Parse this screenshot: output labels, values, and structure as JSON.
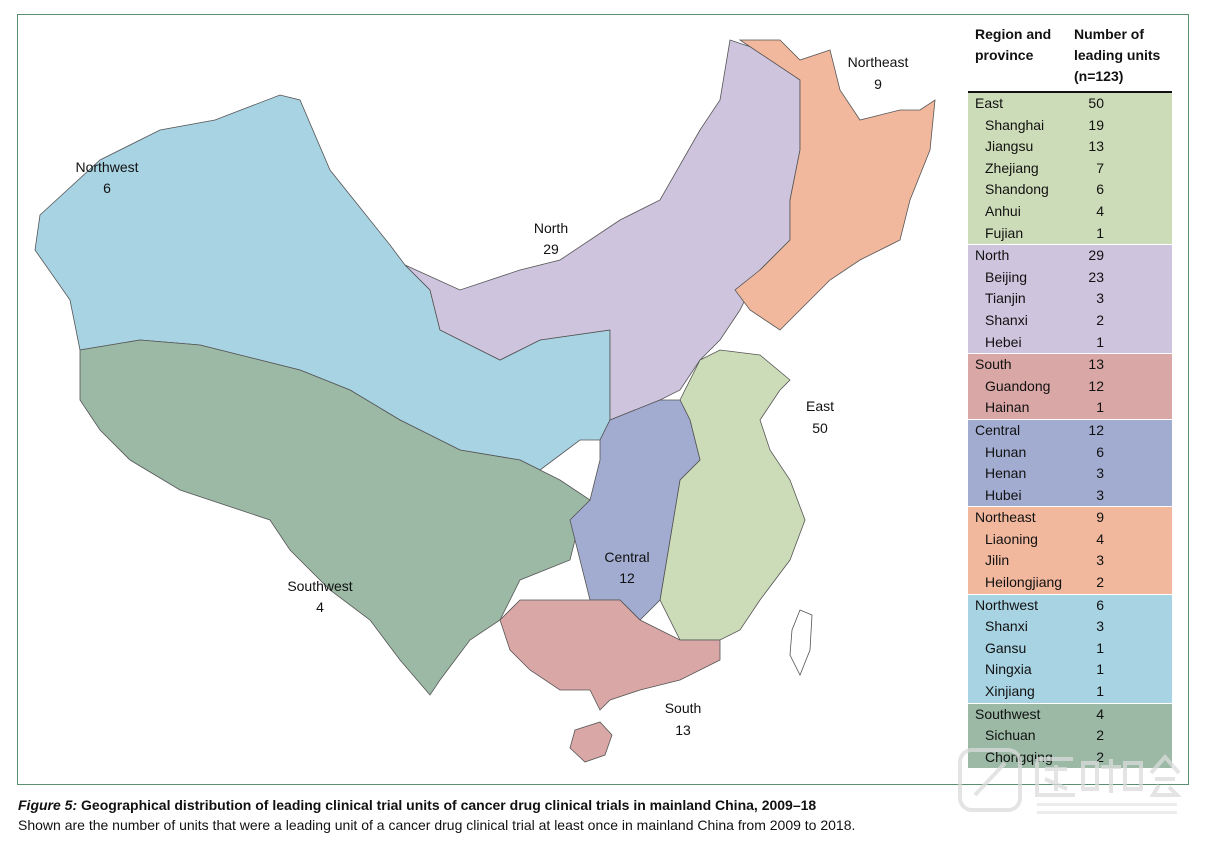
{
  "regions": [
    {
      "name": "Northwest",
      "count": "6",
      "color": "#a8d3e3"
    },
    {
      "name": "Southwest",
      "count": "4",
      "color": "#9bb9a5"
    },
    {
      "name": "North",
      "count": "29",
      "color": "#cfc4dd"
    },
    {
      "name": "Northeast",
      "count": "9",
      "color": "#f2b89e"
    },
    {
      "name": "East",
      "count": "50",
      "color": "#cddcb8"
    },
    {
      "name": "Central",
      "count": "12",
      "color": "#a1acd0"
    },
    {
      "name": "South",
      "count": "13",
      "color": "#d9a7a6"
    }
  ],
  "table": {
    "header_region": "Region and province",
    "header_count": "Number of leading units (n=123)",
    "groups": [
      {
        "region": "East",
        "count": "50",
        "color": "#cddcb8",
        "provinces": [
          [
            "Shanghai",
            "19"
          ],
          [
            "Jiangsu",
            "13"
          ],
          [
            "Zhejiang",
            "7"
          ],
          [
            "Shandong",
            "6"
          ],
          [
            "Anhui",
            "4"
          ],
          [
            "Fujian",
            "1"
          ]
        ]
      },
      {
        "region": "North",
        "count": "29",
        "color": "#cfc4dd",
        "provinces": [
          [
            "Beijing",
            "23"
          ],
          [
            "Tianjin",
            "3"
          ],
          [
            "Shanxi",
            "2"
          ],
          [
            "Hebei",
            "1"
          ]
        ]
      },
      {
        "region": "South",
        "count": "13",
        "color": "#d9a7a6",
        "provinces": [
          [
            "Guandong",
            "12"
          ],
          [
            "Hainan",
            "1"
          ]
        ]
      },
      {
        "region": "Central",
        "count": "12",
        "color": "#a1acd0",
        "provinces": [
          [
            "Hunan",
            "6"
          ],
          [
            "Henan",
            "3"
          ],
          [
            "Hubei",
            "3"
          ]
        ]
      },
      {
        "region": "Northeast",
        "count": "9",
        "color": "#f2b89e",
        "provinces": [
          [
            "Liaoning",
            "4"
          ],
          [
            "Jilin",
            "3"
          ],
          [
            "Heilongjiang",
            "2"
          ]
        ]
      },
      {
        "region": "Northwest",
        "count": "6",
        "color": "#a8d3e3",
        "provinces": [
          [
            "Shanxi",
            "3"
          ],
          [
            "Gansu",
            "1"
          ],
          [
            "Ningxia",
            "1"
          ],
          [
            "Xinjiang",
            "1"
          ]
        ]
      },
      {
        "region": "Southwest",
        "count": "4",
        "color": "#9bb9a5",
        "provinces": [
          [
            "Sichuan",
            "2"
          ],
          [
            "Chongqing",
            "2"
          ]
        ]
      }
    ]
  },
  "caption": {
    "figure_label": "Figure 5:",
    "title": " Geographical distribution of leading clinical trial units of cancer drug clinical trials in mainland China, 2009–18",
    "subtitle": "Shown are the number of units that were a leading unit of a cancer drug clinical trial at least once in mainland China from 2009 to 2018."
  },
  "watermark": {
    "text": "医咖会",
    "subtext": "MEDIEGO GROUP"
  }
}
